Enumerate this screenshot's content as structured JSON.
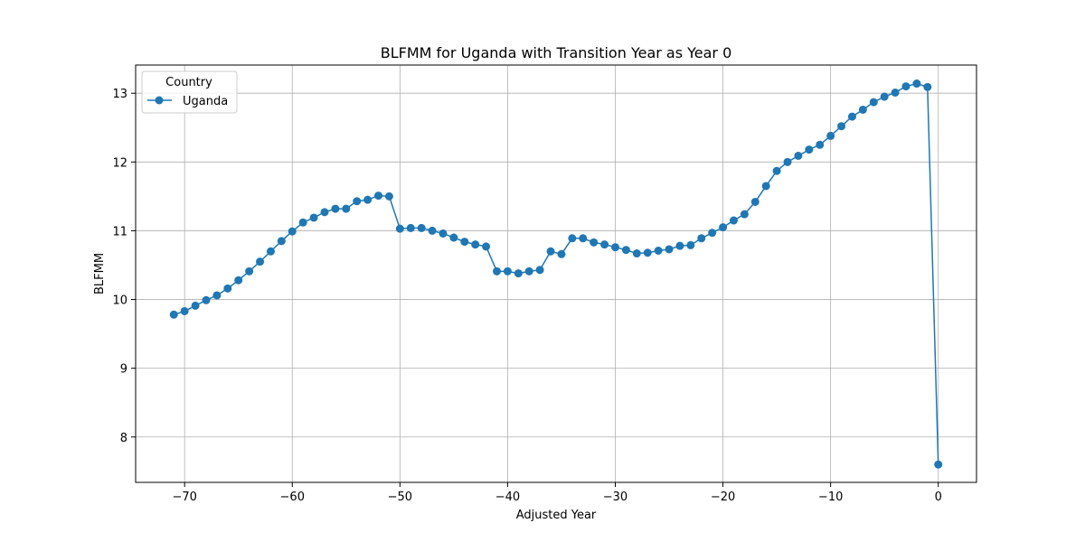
{
  "chart_data": {
    "type": "line",
    "title": "BLFMM for Uganda with Transition Year as Year 0",
    "xlabel": "Adjusted Year",
    "ylabel": "BLFMM",
    "xlim": [
      -74.55,
      3.55
    ],
    "ylim": [
      7.34,
      13.41
    ],
    "xticks": [
      -70,
      -60,
      -50,
      -40,
      -30,
      -20,
      -10,
      0
    ],
    "xtick_labels": [
      "−70",
      "−60",
      "−50",
      "−40",
      "−30",
      "−20",
      "−10",
      "0"
    ],
    "yticks": [
      8,
      9,
      10,
      11,
      12,
      13
    ],
    "ytick_labels": [
      "8",
      "9",
      "10",
      "11",
      "12",
      "13"
    ],
    "grid": true,
    "legend": {
      "title": "Country",
      "position": "top-left",
      "entries": [
        "Uganda"
      ]
    },
    "series": [
      {
        "name": "Uganda",
        "color": "#1f77b4",
        "marker": "circle",
        "x": [
          -71,
          -70,
          -69,
          -68,
          -67,
          -66,
          -65,
          -64,
          -63,
          -62,
          -61,
          -60,
          -59,
          -58,
          -57,
          -56,
          -55,
          -54,
          -53,
          -52,
          -51,
          -50,
          -49,
          -48,
          -47,
          -46,
          -45,
          -44,
          -43,
          -42,
          -41,
          -40,
          -39,
          -38,
          -37,
          -36,
          -35,
          -34,
          -33,
          -32,
          -31,
          -30,
          -29,
          -28,
          -27,
          -26,
          -25,
          -24,
          -23,
          -22,
          -21,
          -20,
          -19,
          -18,
          -17,
          -16,
          -15,
          -14,
          -13,
          -12,
          -11,
          -10,
          -9,
          -8,
          -7,
          -6,
          -5,
          -4,
          -3,
          -2,
          -1,
          0
        ],
        "y": [
          9.78,
          9.83,
          9.91,
          9.99,
          10.06,
          10.16,
          10.28,
          10.41,
          10.55,
          10.7,
          10.85,
          10.99,
          11.12,
          11.19,
          11.27,
          11.32,
          11.32,
          11.43,
          11.45,
          11.51,
          11.5,
          11.03,
          11.04,
          11.04,
          11.0,
          10.96,
          10.9,
          10.84,
          10.8,
          10.77,
          10.41,
          10.41,
          10.38,
          10.41,
          10.43,
          10.7,
          10.66,
          10.89,
          10.89,
          10.83,
          10.8,
          10.76,
          10.72,
          10.67,
          10.68,
          10.71,
          10.73,
          10.78,
          10.79,
          10.89,
          10.97,
          11.05,
          11.15,
          11.24,
          11.42,
          11.65,
          11.87,
          12.0,
          12.09,
          12.18,
          12.25,
          12.38,
          12.52,
          12.66,
          12.76,
          12.87,
          12.95,
          13.01,
          13.1,
          13.14,
          13.09,
          7.6
        ]
      }
    ]
  }
}
